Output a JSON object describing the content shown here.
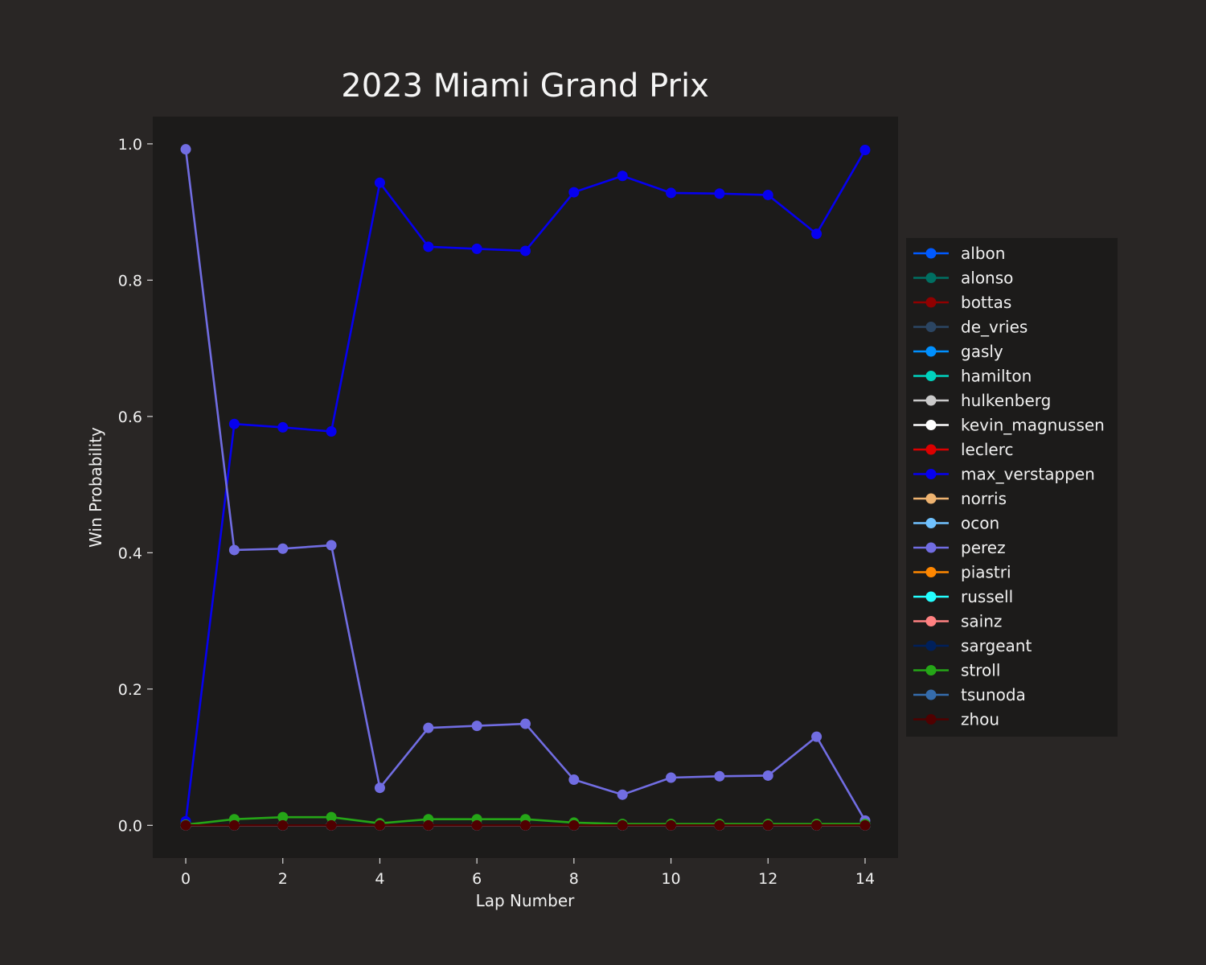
{
  "chart_data": {
    "type": "line",
    "title": "2023 Miami Grand Prix",
    "xlabel": "Lap Number",
    "ylabel": "Win Probability",
    "xlim": [
      -0.68,
      14.68
    ],
    "ylim": [
      -0.048,
      1.04
    ],
    "xticks": [
      0,
      2,
      4,
      6,
      8,
      10,
      12,
      14
    ],
    "yticks": [
      0.0,
      0.2,
      0.4,
      0.6,
      0.8,
      1.0
    ],
    "ytick_labels": [
      "0.0",
      "0.2",
      "0.4",
      "0.6",
      "0.8",
      "1.0"
    ],
    "grid": false,
    "legend_position": "right",
    "background": "#292625",
    "plot_background": "#1c1b1a",
    "x": [
      0,
      1,
      2,
      3,
      4,
      5,
      6,
      7,
      8,
      9,
      10,
      11,
      12,
      13,
      14
    ],
    "series": [
      {
        "name": "albon",
        "color": "#005aff",
        "values": [
          0,
          0,
          0,
          0,
          0,
          0,
          0,
          0,
          0,
          0,
          0,
          0,
          0,
          0,
          0
        ]
      },
      {
        "name": "alonso",
        "color": "#006f62",
        "values": [
          0,
          0,
          0,
          0,
          0,
          0,
          0,
          0,
          0,
          0,
          0,
          0,
          0,
          0,
          0
        ]
      },
      {
        "name": "bottas",
        "color": "#900000",
        "values": [
          0,
          0,
          0,
          0,
          0,
          0,
          0,
          0,
          0,
          0,
          0,
          0,
          0,
          0,
          0
        ]
      },
      {
        "name": "de_vries",
        "color": "#2b4562",
        "values": [
          0,
          0,
          0,
          0,
          0,
          0,
          0,
          0,
          0,
          0,
          0,
          0,
          0,
          0,
          0
        ]
      },
      {
        "name": "gasly",
        "color": "#0090ff",
        "values": [
          0,
          0,
          0,
          0,
          0,
          0,
          0,
          0,
          0,
          0,
          0,
          0,
          0,
          0,
          0
        ]
      },
      {
        "name": "hamilton",
        "color": "#00d2be",
        "values": [
          0,
          0,
          0,
          0,
          0,
          0,
          0,
          0,
          0,
          0,
          0,
          0,
          0,
          0,
          0
        ]
      },
      {
        "name": "hulkenberg",
        "color": "#cacaca",
        "values": [
          0,
          0,
          0,
          0,
          0,
          0,
          0,
          0,
          0,
          0,
          0,
          0,
          0,
          0,
          0
        ]
      },
      {
        "name": "kevin_magnussen",
        "color": "#ffffff",
        "values": [
          0,
          0,
          0,
          0,
          0,
          0,
          0,
          0,
          0,
          0,
          0,
          0,
          0,
          0,
          0
        ]
      },
      {
        "name": "leclerc",
        "color": "#dc0000",
        "values": [
          0,
          0,
          0,
          0,
          0,
          0,
          0,
          0,
          0,
          0,
          0,
          0,
          0,
          0,
          0
        ]
      },
      {
        "name": "max_verstappen",
        "color": "#0600ef",
        "values": [
          0.006,
          0.589,
          0.584,
          0.578,
          0.943,
          0.849,
          0.846,
          0.843,
          0.929,
          0.953,
          0.928,
          0.927,
          0.925,
          0.868,
          0.991
        ]
      },
      {
        "name": "norris",
        "color": "#eeb370",
        "values": [
          0,
          0,
          0,
          0,
          0,
          0,
          0,
          0,
          0,
          0,
          0,
          0,
          0,
          0,
          0
        ]
      },
      {
        "name": "ocon",
        "color": "#70c2ff",
        "values": [
          0,
          0,
          0,
          0,
          0,
          0,
          0,
          0,
          0,
          0,
          0,
          0,
          0,
          0,
          0
        ]
      },
      {
        "name": "perez",
        "color": "#716de2",
        "values": [
          0.992,
          0.404,
          0.406,
          0.411,
          0.055,
          0.143,
          0.146,
          0.149,
          0.067,
          0.045,
          0.07,
          0.072,
          0.073,
          0.13,
          0.007
        ]
      },
      {
        "name": "piastri",
        "color": "#ff8700",
        "values": [
          0,
          0,
          0,
          0,
          0,
          0,
          0,
          0,
          0,
          0,
          0,
          0,
          0,
          0,
          0
        ]
      },
      {
        "name": "russell",
        "color": "#24ffff",
        "values": [
          0,
          0,
          0,
          0,
          0,
          0,
          0,
          0,
          0,
          0,
          0,
          0,
          0,
          0,
          0
        ]
      },
      {
        "name": "sainz",
        "color": "#ff8181",
        "values": [
          0,
          0,
          0,
          0,
          0,
          0,
          0,
          0,
          0,
          0,
          0,
          0,
          0,
          0,
          0
        ]
      },
      {
        "name": "sargeant",
        "color": "#00205b",
        "values": [
          0,
          0,
          0,
          0,
          0,
          0,
          0,
          0,
          0,
          0,
          0,
          0,
          0,
          0,
          0
        ]
      },
      {
        "name": "stroll",
        "color": "#25a617",
        "values": [
          0.001,
          0.009,
          0.012,
          0.012,
          0.003,
          0.009,
          0.009,
          0.009,
          0.004,
          0.002,
          0.002,
          0.002,
          0.002,
          0.002,
          0.002
        ]
      },
      {
        "name": "tsunoda",
        "color": "#356cac",
        "values": [
          0,
          0,
          0,
          0,
          0,
          0,
          0,
          0,
          0,
          0,
          0,
          0,
          0,
          0,
          0
        ]
      },
      {
        "name": "zhou",
        "color": "#500000",
        "values": [
          0,
          0,
          0,
          0,
          0,
          0,
          0,
          0,
          0,
          0,
          0,
          0,
          0,
          0,
          0
        ]
      }
    ]
  }
}
